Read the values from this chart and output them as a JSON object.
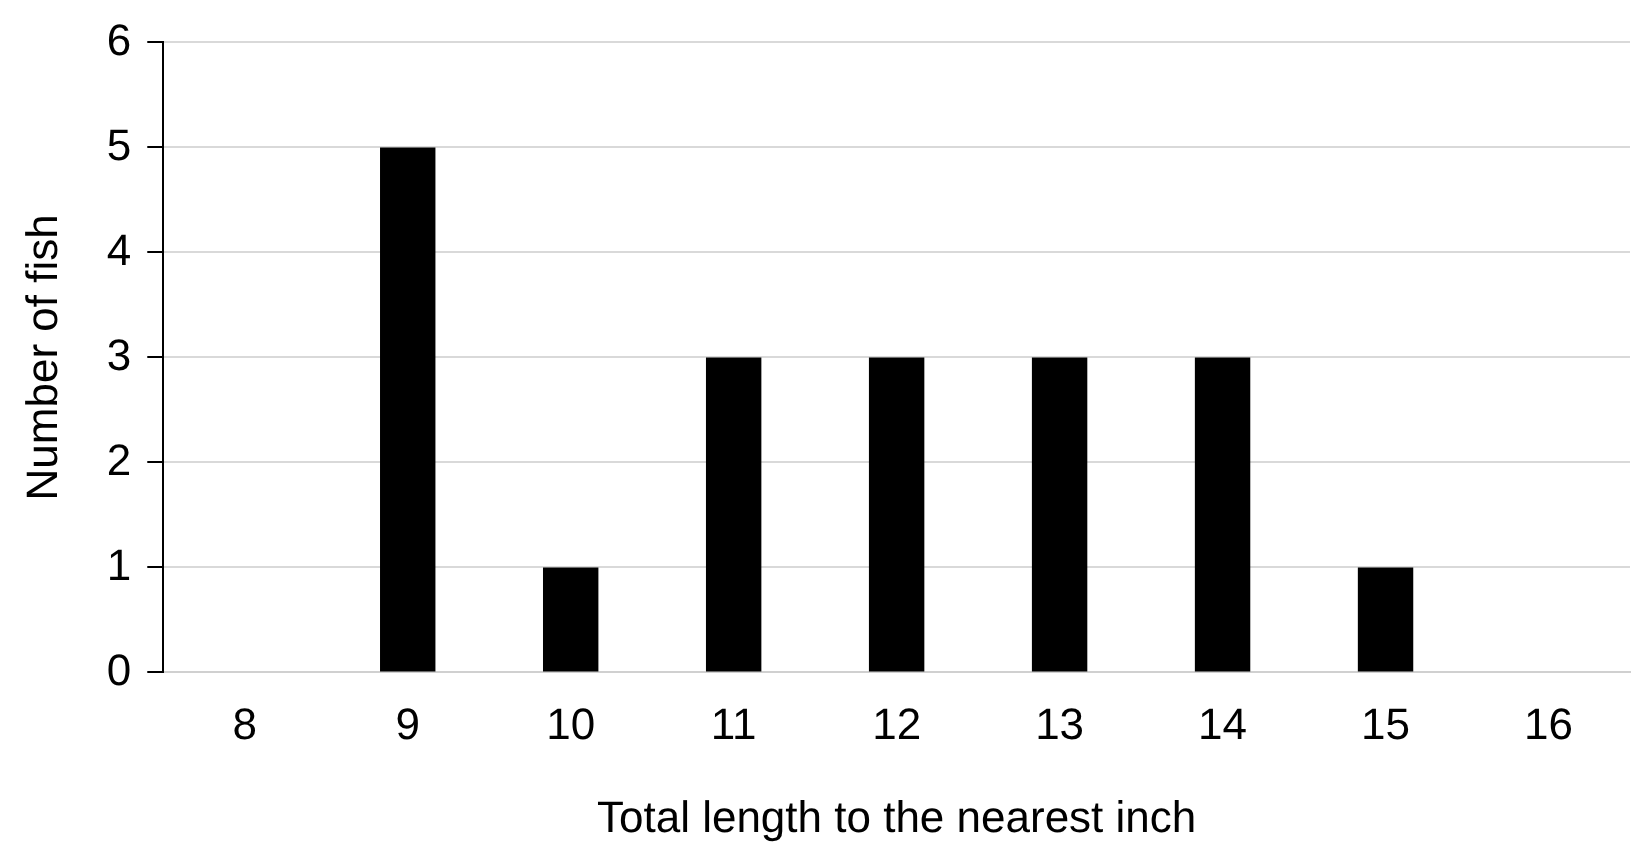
{
  "chart_data": {
    "type": "bar",
    "xlabel": "Total length to the nearest inch",
    "ylabel": "Number of fish",
    "categories": [
      "8",
      "9",
      "10",
      "11",
      "12",
      "13",
      "14",
      "15",
      "16"
    ],
    "values": [
      0,
      5,
      1,
      3,
      3,
      3,
      3,
      1,
      0
    ],
    "color": "#000000",
    "ylim": [
      0,
      6
    ],
    "yticks": [
      0,
      1,
      2,
      3,
      4,
      5,
      6
    ],
    "grid": "y",
    "legend": false
  }
}
